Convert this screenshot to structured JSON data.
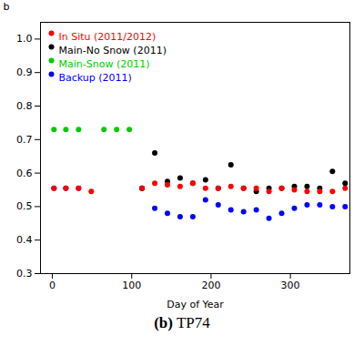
{
  "chart_data": {
    "type": "scatter",
    "title": "(b) TP74",
    "xlabel": "Day of Year",
    "ylabel": "b",
    "xlim": [
      -15,
      375
    ],
    "ylim": [
      0.3,
      1.05
    ],
    "xticks": [
      0,
      100,
      200,
      300
    ],
    "yticks": [
      0.3,
      0.4,
      0.5,
      0.6,
      0.7,
      0.8,
      0.9,
      {
        "value": 1.0,
        "label": "1.0"
      }
    ],
    "grid": false,
    "legend": "upper left",
    "marker": "circle",
    "series": [
      {
        "name": "In Situ (2011/2012)",
        "color": "red",
        "x": [
          2,
          17,
          33,
          49,
          113,
          129,
          145,
          161,
          177,
          193,
          209,
          225,
          241,
          257,
          273,
          289,
          305,
          321,
          337,
          353,
          369
        ],
        "values": [
          0.555,
          0.555,
          0.555,
          0.545,
          0.555,
          0.57,
          0.565,
          0.56,
          0.57,
          0.555,
          0.555,
          0.56,
          0.555,
          0.555,
          0.545,
          0.555,
          0.55,
          0.545,
          0.545,
          0.545,
          0.555
        ]
      },
      {
        "name": "Main-No Snow (2011)",
        "color": "black",
        "x": [
          113,
          129,
          145,
          161,
          177,
          193,
          209,
          225,
          241,
          257,
          273,
          289,
          305,
          321,
          337,
          353,
          369
        ],
        "values": [
          0.555,
          0.66,
          0.575,
          0.585,
          0.57,
          0.58,
          0.555,
          0.625,
          0.555,
          0.545,
          0.555,
          0.555,
          0.56,
          0.56,
          0.555,
          0.605,
          0.57
        ]
      },
      {
        "name": "Main-Snow (2011)",
        "color": "#00cc00",
        "x": [
          2,
          17,
          33,
          65,
          81,
          97
        ],
        "values": [
          0.73,
          0.73,
          0.73,
          0.73,
          0.73,
          0.73
        ]
      },
      {
        "name": "Backup (2011)",
        "color": "blue",
        "x": [
          2,
          17,
          33,
          113,
          129,
          145,
          161,
          177,
          193,
          209,
          225,
          241,
          257,
          273,
          289,
          305,
          321,
          337,
          353,
          369
        ],
        "values": [
          0.555,
          0.555,
          0.555,
          0.555,
          0.495,
          0.48,
          0.47,
          0.47,
          0.52,
          0.505,
          0.49,
          0.485,
          0.49,
          0.465,
          0.48,
          0.495,
          0.505,
          0.505,
          0.5,
          0.5
        ]
      }
    ]
  }
}
